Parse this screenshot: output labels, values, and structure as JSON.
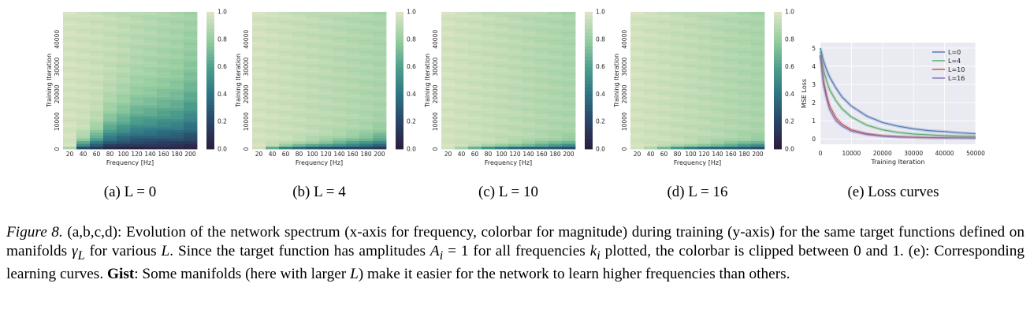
{
  "chart_data": [
    {
      "type": "heatmap",
      "panel": "(a)",
      "L": 0,
      "subcaption": "(a) L = 0",
      "xlabel": "Frequency [Hz]",
      "ylabel": "Training Iteration",
      "x_ticks": [
        20,
        40,
        60,
        80,
        100,
        120,
        140,
        160,
        180,
        200
      ],
      "y_ticks": [
        0,
        10000,
        20000,
        30000,
        40000
      ],
      "ylim": [
        0,
        50000
      ],
      "colorbar_ticks": [
        "0.0",
        "0.2",
        "0.4",
        "0.6",
        "0.8",
        "1.0"
      ],
      "converge_iter": [
        600,
        5500,
        10000,
        18000,
        22000,
        26000,
        27000,
        29000,
        30000,
        36000
      ]
    },
    {
      "type": "heatmap",
      "panel": "(b)",
      "L": 4,
      "subcaption": "(b) L = 4",
      "xlabel": "Frequency [Hz]",
      "ylabel": "Training Iteration",
      "x_ticks": [
        20,
        40,
        60,
        80,
        100,
        120,
        140,
        160,
        180,
        200
      ],
      "y_ticks": [
        0,
        10000,
        20000,
        30000,
        40000
      ],
      "ylim": [
        0,
        50000
      ],
      "colorbar_ticks": [
        "0.0",
        "0.2",
        "0.4",
        "0.6",
        "0.8",
        "1.0"
      ],
      "converge_iter": [
        300,
        1200,
        2000,
        2600,
        3200,
        3800,
        4400,
        5200,
        6000,
        7500
      ]
    },
    {
      "type": "heatmap",
      "panel": "(c)",
      "L": 10,
      "subcaption": "(c) L = 10",
      "xlabel": "Frequency [Hz]",
      "ylabel": "Training Iteration",
      "x_ticks": [
        20,
        40,
        60,
        80,
        100,
        120,
        140,
        160,
        180,
        200
      ],
      "y_ticks": [
        0,
        10000,
        20000,
        30000,
        40000
      ],
      "ylim": [
        0,
        50000
      ],
      "colorbar_ticks": [
        "0.0",
        "0.2",
        "0.4",
        "0.6",
        "0.8",
        "1.0"
      ],
      "converge_iter": [
        200,
        700,
        1100,
        1500,
        1900,
        2300,
        2700,
        3100,
        3500,
        4000
      ]
    },
    {
      "type": "heatmap",
      "panel": "(d)",
      "L": 16,
      "subcaption": "(d) L = 16",
      "xlabel": "Frequency [Hz]",
      "ylabel": "Training Iteration",
      "x_ticks": [
        20,
        40,
        60,
        80,
        100,
        120,
        140,
        160,
        180,
        200
      ],
      "y_ticks": [
        0,
        10000,
        20000,
        30000,
        40000
      ],
      "ylim": [
        0,
        50000
      ],
      "colorbar_ticks": [
        "0.0",
        "0.2",
        "0.4",
        "0.6",
        "0.8",
        "1.0"
      ],
      "converge_iter": [
        200,
        600,
        1000,
        1400,
        1800,
        2200,
        2600,
        3000,
        3400,
        3900
      ]
    },
    {
      "type": "line",
      "panel": "(e)",
      "subcaption": "(e) Loss curves",
      "xlabel": "Training Iteration",
      "ylabel": "MSE Loss",
      "x_ticks": [
        0,
        10000,
        20000,
        30000,
        40000,
        50000
      ],
      "y_ticks": [
        0,
        1,
        2,
        3,
        4,
        5
      ],
      "xlim": [
        0,
        50000
      ],
      "ylim": [
        -0.3,
        5.3
      ],
      "legend": "top-right",
      "x": [
        0,
        1000,
        2000,
        3000,
        5000,
        7000,
        10000,
        15000,
        20000,
        25000,
        30000,
        35000,
        40000,
        45000,
        50000
      ],
      "series": [
        {
          "name": "L=0",
          "color": "#4c72b0",
          "values": [
            5.0,
            4.3,
            3.8,
            3.4,
            2.8,
            2.3,
            1.8,
            1.25,
            0.9,
            0.7,
            0.55,
            0.45,
            0.4,
            0.33,
            0.28
          ]
        },
        {
          "name": "L=4",
          "color": "#55a868",
          "values": [
            4.8,
            3.8,
            3.2,
            2.7,
            2.1,
            1.65,
            1.2,
            0.75,
            0.5,
            0.35,
            0.27,
            0.22,
            0.18,
            0.15,
            0.13
          ]
        },
        {
          "name": "L=10",
          "color": "#c44e52",
          "values": [
            4.6,
            3.2,
            2.4,
            1.8,
            1.15,
            0.8,
            0.5,
            0.28,
            0.17,
            0.12,
            0.09,
            0.07,
            0.06,
            0.05,
            0.05
          ]
        },
        {
          "name": "L=16",
          "color": "#8172b2",
          "values": [
            4.6,
            3.0,
            2.2,
            1.6,
            1.0,
            0.7,
            0.42,
            0.24,
            0.15,
            0.1,
            0.08,
            0.06,
            0.05,
            0.05,
            0.04
          ]
        }
      ]
    }
  ],
  "caption": {
    "lead": "Figure 8.",
    "part1": " (a,b,c,d): Evolution of the network spectrum (x-axis for frequency, colorbar for magnitude) during training (y-axis) for the same target functions defined on manifolds ",
    "gamma": "γ",
    "gamma_sub": "L",
    "part2": " for various ",
    "L1": "L",
    "part3": ". Since the target function has amplitudes ",
    "A": "A",
    "A_sub": "i",
    "eq": " = 1 for all frequencies ",
    "k": "k",
    "k_sub": "i",
    "part4": " plotted, the colorbar is clipped between 0 and 1. (e): Corresponding learning curves. ",
    "gist": "Gist",
    "part5": ": Some manifolds (here with larger ",
    "L2": "L",
    "part6": ") make it easier for the network to learn higher frequencies than others."
  }
}
